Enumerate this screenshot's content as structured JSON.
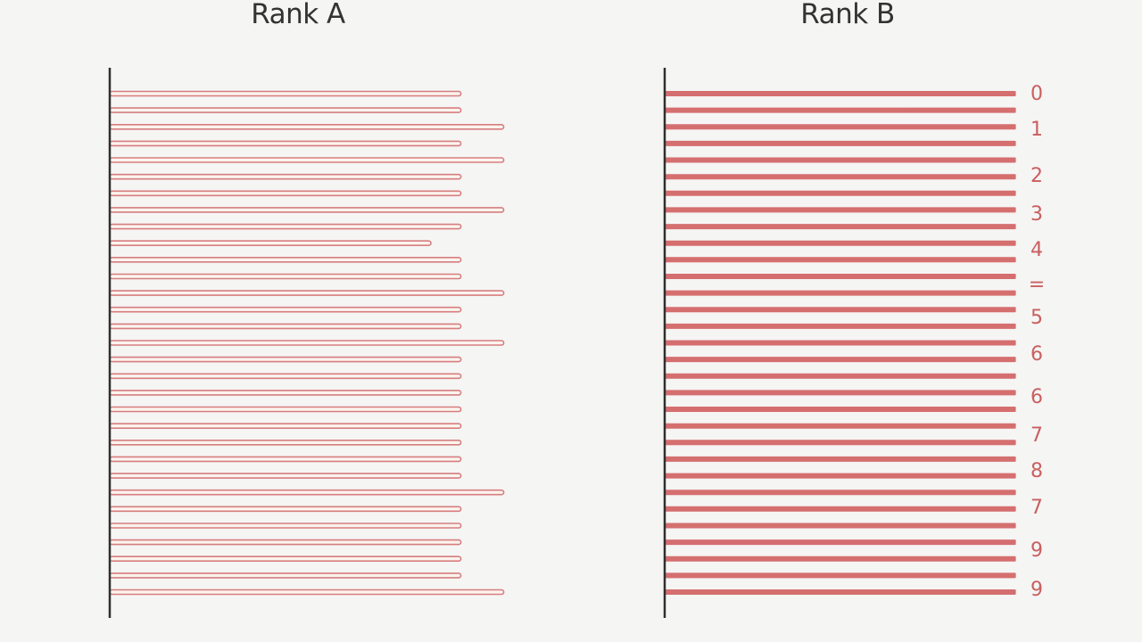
{
  "titles": {
    "left": "Rank A",
    "right": "Rank B"
  },
  "colors": {
    "background": "#f5f5f4",
    "bar_outline": "#d67e7e",
    "bar_fill_a": "#fbf3ee",
    "bar_fill_b": "#d56f6f",
    "label": "#c95f5f",
    "axis": "#2f2f2f"
  },
  "chart_data": [
    {
      "type": "bar",
      "orientation": "horizontal",
      "title": "Rank A",
      "bar_style": "outlined",
      "values": [
        82,
        82,
        92,
        82,
        92,
        82,
        82,
        92,
        82,
        75,
        82,
        82,
        92,
        82,
        82,
        92,
        82,
        82,
        82,
        82,
        82,
        82,
        82,
        82,
        92,
        82,
        82,
        82,
        82,
        82,
        92
      ],
      "xlim": [
        0,
        100
      ],
      "grid": false
    },
    {
      "type": "bar",
      "orientation": "horizontal",
      "title": "Rank B",
      "bar_style": "filled",
      "values": [
        82,
        82,
        82,
        82,
        82,
        82,
        82,
        82,
        82,
        82,
        82,
        82,
        82,
        82,
        82,
        82,
        82,
        82,
        82,
        82,
        82,
        82,
        82,
        82,
        82,
        82,
        82,
        82,
        82,
        82,
        82
      ],
      "xlim": [
        0,
        100
      ],
      "grid": false,
      "annotations": [
        "0",
        "1",
        "2",
        "3",
        "4",
        "=",
        "5",
        "6",
        "6",
        "7",
        "8",
        "7",
        "9",
        "9"
      ]
    }
  ]
}
